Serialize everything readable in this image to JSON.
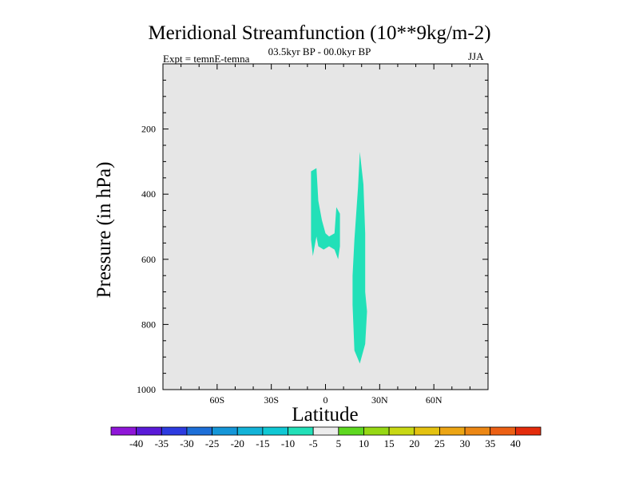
{
  "chart_data": {
    "type": "contour",
    "title": "Meridional Streamfunction (10**9kg/m-2)",
    "subtitle": "03.5kyr BP - 00.0kyr BP",
    "experiment": "Expt = temnE-temna",
    "season": "JJA",
    "xlabel": "Latitude",
    "ylabel": "Pressure (in hPa)",
    "xlim": [
      -90,
      90
    ],
    "ylim": [
      1000,
      0
    ],
    "x_ticks": [
      {
        "value": -60,
        "label": "60S"
      },
      {
        "value": -30,
        "label": "30S"
      },
      {
        "value": 0,
        "label": "0"
      },
      {
        "value": 30,
        "label": "30N"
      },
      {
        "value": 60,
        "label": "60N"
      }
    ],
    "y_ticks": [
      {
        "value": 200,
        "label": "200"
      },
      {
        "value": 400,
        "label": "400"
      },
      {
        "value": 600,
        "label": "600"
      },
      {
        "value": 800,
        "label": "800"
      },
      {
        "value": 1000,
        "label": "1000"
      }
    ],
    "background_color": "#e6e6e6",
    "regions": [
      {
        "name": "negative-anomaly-cell-a",
        "level": "-5 to 0",
        "color": "#22e0b8",
        "points": [
          [
            -8,
            330
          ],
          [
            -5,
            320
          ],
          [
            -4,
            420
          ],
          [
            -2,
            480
          ],
          [
            0,
            520
          ],
          [
            2,
            530
          ],
          [
            5,
            520
          ],
          [
            6,
            440
          ],
          [
            8,
            460
          ],
          [
            8,
            560
          ],
          [
            7,
            600
          ],
          [
            5,
            570
          ],
          [
            2,
            560
          ],
          [
            -1,
            570
          ],
          [
            -4,
            560
          ],
          [
            -5,
            530
          ],
          [
            -6,
            560
          ],
          [
            -7,
            590
          ],
          [
            -8,
            540
          ],
          [
            -8,
            460
          ]
        ]
      },
      {
        "name": "negative-anomaly-cell-b",
        "level": "-5 to 0",
        "color": "#22e0b8",
        "points": [
          [
            19,
            270
          ],
          [
            21,
            370
          ],
          [
            22,
            520
          ],
          [
            22,
            700
          ],
          [
            23,
            760
          ],
          [
            22,
            860
          ],
          [
            19,
            920
          ],
          [
            16,
            880
          ],
          [
            15,
            740
          ],
          [
            15,
            650
          ],
          [
            16,
            540
          ],
          [
            18,
            380
          ]
        ]
      }
    ],
    "colorbar": {
      "labels": [
        "-40",
        "-35",
        "-30",
        "-25",
        "-20",
        "-15",
        "-10",
        "-5",
        "5",
        "10",
        "15",
        "20",
        "25",
        "30",
        "35",
        "40"
      ],
      "colors": [
        "#8f16d8",
        "#5a1ad8",
        "#2d3be0",
        "#1d6fd8",
        "#1596d8",
        "#13b3d8",
        "#10c8d4",
        "#22e0b8",
        "#ececec",
        "#5ed820",
        "#96d814",
        "#c8d814",
        "#e4c210",
        "#eca514",
        "#ec8714",
        "#ec6014",
        "#e42c0c"
      ]
    }
  }
}
